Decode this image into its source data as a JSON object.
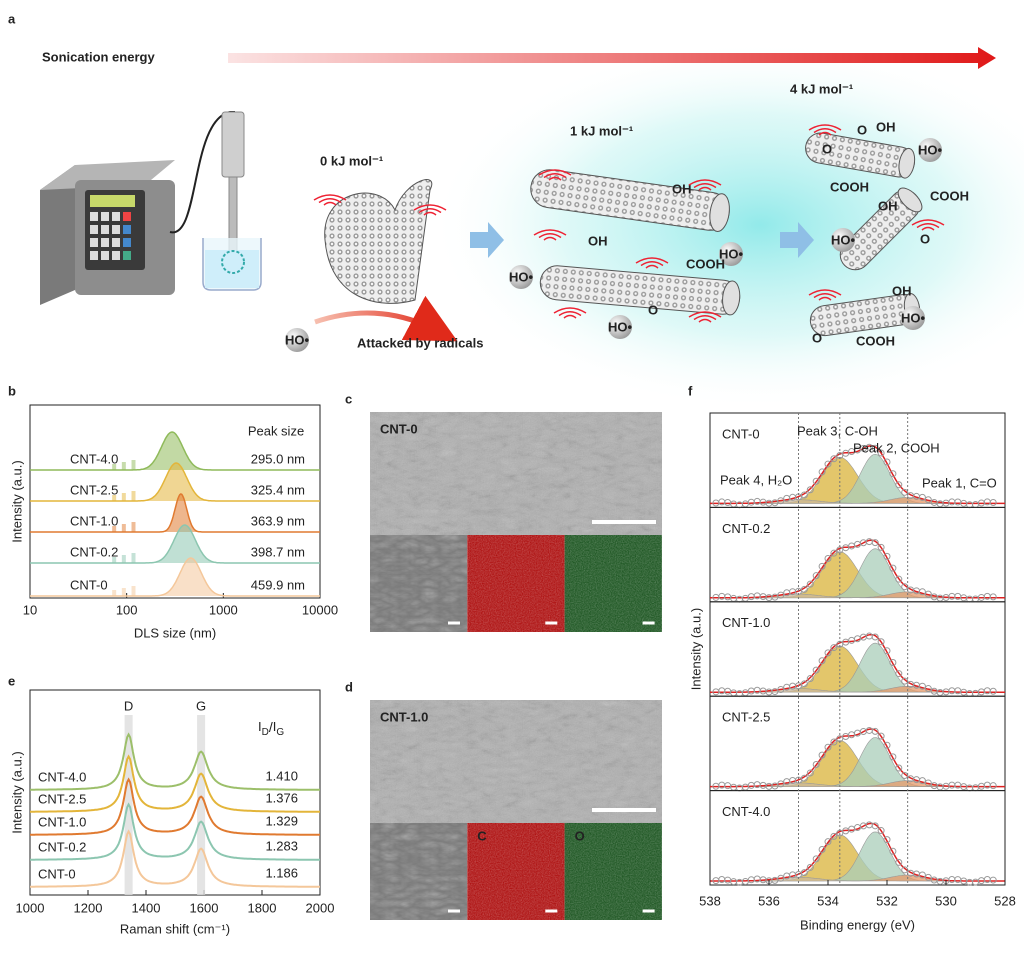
{
  "panel_a": {
    "letter": "a",
    "arrow_label": "Sonication energy",
    "stages": [
      "0 kJ mol⁻¹",
      "1 kJ mol⁻¹",
      "4 kJ mol⁻¹"
    ],
    "radical": "HO•",
    "caption": "Attacked by radicals",
    "groups": [
      "OH",
      "COOH",
      "O"
    ]
  },
  "panel_b": {
    "letter": "b",
    "ylabel": "Intensity (a.u.)",
    "xlabel": "DLS size (nm)",
    "xticks": [
      10,
      100,
      1000,
      10000
    ],
    "header": "Peak size",
    "samples": [
      "CNT-4.0",
      "CNT-2.5",
      "CNT-1.0",
      "CNT-0.2",
      "CNT-0"
    ],
    "colors": [
      "#8fba5a",
      "#e3b53a",
      "#e07a30",
      "#8cc6b0",
      "#f4c79a"
    ],
    "peak_sizes": [
      295.0,
      325.4,
      363.9,
      398.7,
      459.9
    ],
    "value_labels": [
      "295.0 nm",
      "325.4 nm",
      "363.9 nm",
      "398.7 nm",
      "459.9 nm"
    ]
  },
  "panel_c": {
    "letter": "c",
    "label": "CNT-0"
  },
  "panel_d": {
    "letter": "d",
    "label": "CNT-1.0",
    "maps": [
      "C",
      "O"
    ]
  },
  "panel_e": {
    "letter": "e",
    "ylabel": "Intensity (a.u.)",
    "xlabel": "Raman shift (cm⁻¹)",
    "xticks": [
      1000,
      1200,
      1400,
      1600,
      1800,
      2000
    ],
    "bands": [
      "D",
      "G"
    ],
    "ratio_symbol": "I",
    "ratio_subs": [
      "D",
      "G"
    ],
    "ratio_slash": "/",
    "samples": [
      "CNT-4.0",
      "CNT-2.5",
      "CNT-1.0",
      "CNT-0.2",
      "CNT-0"
    ],
    "ratios": [
      "1.410",
      "1.376",
      "1.329",
      "1.283",
      "1.186"
    ]
  },
  "panel_f": {
    "letter": "f",
    "ylabel": "Intensity (a.u.)",
    "xlabel": "Binding energy (eV)",
    "xticks": [
      538,
      536,
      534,
      532,
      530,
      528
    ],
    "samples": [
      "CNT-0",
      "CNT-0.2",
      "CNT-1.0",
      "CNT-2.5",
      "CNT-4.0"
    ],
    "peaks": [
      "Peak 3, C-OH",
      "Peak 2, COOH",
      "Peak 4, H₂O",
      "Peak 1, C=O"
    ]
  }
}
